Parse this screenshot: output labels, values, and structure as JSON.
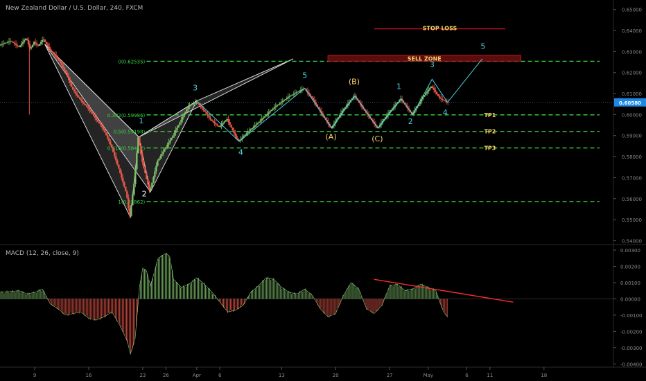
{
  "chart_data": [
    {
      "type": "candlestick",
      "symbol_title": "New Zealand Dollar / U.S. Dollar, 240, FXCM",
      "y_ticks": [
        "0.65000",
        "0.64000",
        "0.63000",
        "0.62000",
        "0.61000",
        "0.60000",
        "0.59000",
        "0.58000",
        "0.57000",
        "0.56000",
        "0.55000",
        "0.54000"
      ],
      "ylim": [
        0.5385,
        0.6545
      ],
      "x_ticks": [
        "9",
        "16",
        "23",
        "26",
        "Apr",
        "6",
        "13",
        "20",
        "27",
        "May",
        "6",
        "11",
        "18"
      ],
      "x_tick_positions": [
        1,
        8,
        15,
        18,
        22,
        25,
        33,
        40,
        47,
        52,
        57,
        60,
        67
      ],
      "xlim": [
        -3.5,
        76
      ],
      "last_price": "0.60580",
      "last_price_value": 0.6058,
      "price_path": [
        [
          -3.5,
          0.633
        ],
        [
          -2,
          0.635
        ],
        [
          -1,
          0.632
        ],
        [
          0,
          0.6365
        ],
        [
          0.5,
          0.631
        ],
        [
          1,
          0.6345
        ],
        [
          1.5,
          0.6325
        ],
        [
          2.2,
          0.636
        ],
        [
          3,
          0.631
        ],
        [
          4,
          0.627
        ],
        [
          5,
          0.621
        ],
        [
          6,
          0.612
        ],
        [
          7,
          0.607
        ],
        [
          8,
          0.603
        ],
        [
          9,
          0.598
        ],
        [
          10,
          0.593
        ],
        [
          11,
          0.585
        ],
        [
          12,
          0.574
        ],
        [
          13,
          0.562
        ],
        [
          13.4,
          0.5512
        ],
        [
          14,
          0.568
        ],
        [
          14.5,
          0.5893
        ],
        [
          15,
          0.578
        ],
        [
          16,
          0.5632
        ],
        [
          17,
          0.578
        ],
        [
          18,
          0.584
        ],
        [
          19,
          0.59
        ],
        [
          20,
          0.597
        ],
        [
          21,
          0.604
        ],
        [
          22,
          0.606
        ],
        [
          23,
          0.602
        ],
        [
          24,
          0.597
        ],
        [
          25,
          0.594
        ],
        [
          26,
          0.598
        ],
        [
          27,
          0.5905
        ],
        [
          27.5,
          0.5872
        ],
        [
          28.5,
          0.591
        ],
        [
          30,
          0.596
        ],
        [
          32,
          0.603
        ],
        [
          34,
          0.6085
        ],
        [
          36,
          0.6125
        ],
        [
          37,
          0.608
        ],
        [
          38,
          0.602
        ],
        [
          39.5,
          0.5935
        ],
        [
          41,
          0.602
        ],
        [
          42.5,
          0.609
        ],
        [
          44,
          0.601
        ],
        [
          45.5,
          0.5935
        ],
        [
          47,
          0.601
        ],
        [
          48.5,
          0.6075
        ],
        [
          50,
          0.6
        ],
        [
          51.5,
          0.609
        ],
        [
          52.5,
          0.6135
        ],
        [
          53.5,
          0.608
        ],
        [
          54.5,
          0.6058
        ]
      ],
      "fib_levels": [
        {
          "label": "0(0.62535)",
          "value": 0.62535
        },
        {
          "label": "0.382(0.59986)",
          "value": 0.59986
        },
        {
          "label": "0.5(0.59198)",
          "value": 0.59198
        },
        {
          "label": "0.618(0.58412)",
          "value": 0.58412
        },
        {
          "label": "1(0.55862)",
          "value": 0.55862
        }
      ],
      "targets": [
        {
          "label": "TP1",
          "value": 0.59986
        },
        {
          "label": "TP2",
          "value": 0.59198
        },
        {
          "label": "TP3",
          "value": 0.58412
        }
      ],
      "stop_loss": {
        "label": "STOP LOSS",
        "value": 0.6408,
        "x_start": 45,
        "x_end": 62
      },
      "sell_zone": {
        "label": "SELL ZONE",
        "top": 0.6282,
        "bottom": 0.6254,
        "x_start": 39,
        "x_end": 64
      },
      "harmonic_pattern": [
        [
          [
            2.3,
            0.6335
          ],
          [
            13.4,
            0.5512
          ],
          [
            14.5,
            0.5893
          ]
        ],
        [
          [
            14.5,
            0.5893
          ],
          [
            16,
            0.5632
          ],
          [
            22,
            0.6065
          ]
        ],
        [
          [
            2.3,
            0.6335
          ],
          [
            14.5,
            0.5893
          ],
          [
            16,
            0.5632
          ]
        ],
        [
          [
            14.5,
            0.5893
          ],
          [
            22,
            0.6065
          ],
          [
            34.5,
            0.6265
          ]
        ]
      ],
      "wave_path": [
        [
          22,
          0.6065
        ],
        [
          27.5,
          0.5872
        ],
        [
          36,
          0.6125
        ],
        [
          39.5,
          0.5935
        ],
        [
          42.5,
          0.609
        ],
        [
          45.5,
          0.5935
        ],
        [
          48.5,
          0.6075
        ],
        [
          50,
          0.6
        ],
        [
          52.5,
          0.6168
        ],
        [
          54.5,
          0.6058
        ],
        [
          59,
          0.6265
        ]
      ],
      "wave_labels": [
        {
          "text": "1",
          "x": 14.8,
          "y": 0.5958,
          "color": "#4dd0e1"
        },
        {
          "text": "2",
          "x": 15.2,
          "y": 0.561,
          "color": "#f7f7f7"
        },
        {
          "text": "3",
          "x": 21.8,
          "y": 0.6115,
          "color": "#4dd0e1"
        },
        {
          "text": "4",
          "x": 27.7,
          "y": 0.5808,
          "color": "#4dd0e1"
        },
        {
          "text": "5",
          "x": 36,
          "y": 0.6175,
          "color": "#4dd0e1"
        },
        {
          "text": "(A)",
          "x": 39.4,
          "y": 0.5882,
          "color": "#f6d56b"
        },
        {
          "text": "(B)",
          "x": 42.4,
          "y": 0.6145,
          "color": "#f6d56b"
        },
        {
          "text": "(C)",
          "x": 45.4,
          "y": 0.5872,
          "color": "#f6d56b"
        },
        {
          "text": "1",
          "x": 48.2,
          "y": 0.6122,
          "color": "#4dd0e1"
        },
        {
          "text": "2",
          "x": 49.7,
          "y": 0.5955,
          "color": "#4dd0e1"
        },
        {
          "text": "3",
          "x": 52.5,
          "y": 0.6225,
          "color": "#4dd0e1"
        },
        {
          "text": "4",
          "x": 54.2,
          "y": 0.5998,
          "color": "#4dd0e1"
        },
        {
          "text": "5",
          "x": 59.1,
          "y": 0.6312,
          "color": "#4dd0e1"
        }
      ]
    },
    {
      "type": "histogram",
      "title": "MACD (12, 26, close, 9)",
      "y_ticks": [
        "0.00300",
        "0.00200",
        "0.00100",
        "0.00000",
        "-0.00100",
        "-0.00200",
        "-0.00300",
        "-0.00400"
      ],
      "ylim": [
        -0.0042,
        0.0033
      ],
      "macd_path": [
        [
          -3.5,
          0.0004
        ],
        [
          -1,
          0.0005
        ],
        [
          0,
          0.0003
        ],
        [
          1,
          0.0004
        ],
        [
          2,
          0.0006
        ],
        [
          3,
          -0.0003
        ],
        [
          4,
          -0.0006
        ],
        [
          5,
          -0.001
        ],
        [
          6,
          -0.0009
        ],
        [
          7,
          -0.0008
        ],
        [
          8,
          -0.0012
        ],
        [
          9,
          -0.0013
        ],
        [
          10,
          -0.0011
        ],
        [
          11,
          -0.0008
        ],
        [
          12,
          -0.0016
        ],
        [
          13,
          -0.0026
        ],
        [
          13.4,
          -0.0034
        ],
        [
          14,
          -0.0025
        ],
        [
          14.6,
          0.0008
        ],
        [
          15,
          0.0019
        ],
        [
          15.5,
          0.0017
        ],
        [
          16,
          0.0008
        ],
        [
          17,
          0.0025
        ],
        [
          18,
          0.0028
        ],
        [
          18.5,
          0.0026
        ],
        [
          19,
          0.0012
        ],
        [
          20,
          0.0007
        ],
        [
          21,
          0.0009
        ],
        [
          22,
          0.0013
        ],
        [
          23,
          0.0009
        ],
        [
          24,
          0.0004
        ],
        [
          25,
          -0.0002
        ],
        [
          26,
          -0.0008
        ],
        [
          27,
          -0.0007
        ],
        [
          28,
          -0.0004
        ],
        [
          29,
          0.0004
        ],
        [
          30,
          0.0008
        ],
        [
          31,
          0.0013
        ],
        [
          32,
          0.0012
        ],
        [
          33,
          0.0007
        ],
        [
          34,
          0.0004
        ],
        [
          35,
          0.0003
        ],
        [
          36,
          0.0006
        ],
        [
          37,
          0.0002
        ],
        [
          38,
          -0.0006
        ],
        [
          39,
          -0.0011
        ],
        [
          40,
          -0.0009
        ],
        [
          41,
          0.0002
        ],
        [
          42,
          0.001
        ],
        [
          43,
          0.0006
        ],
        [
          44,
          -0.0006
        ],
        [
          45,
          -0.0009
        ],
        [
          46,
          -0.0004
        ],
        [
          47,
          0.0008
        ],
        [
          48,
          0.0009
        ],
        [
          49,
          0.0005
        ],
        [
          50,
          0.0006
        ],
        [
          51,
          0.0009
        ],
        [
          52,
          0.0007
        ],
        [
          53,
          0.0005
        ],
        [
          53.5,
          -0.0002
        ],
        [
          54,
          -0.0008
        ],
        [
          54.5,
          -0.0011
        ]
      ],
      "trendline": [
        [
          45,
          0.0012
        ],
        [
          63,
          -0.0002
        ]
      ],
      "trendline_color": "#ff2b2b",
      "positive_color": "#7fbf6a",
      "negative_color": "#e8584a"
    }
  ],
  "colors": {
    "fib_line": "#39d642",
    "fib_label": "#39d642",
    "target_label": "#f6d56b",
    "stop_loss_line": "#c01313",
    "sell_zone_fill": "#5c0c0c",
    "sell_zone_border": "#b31a1a",
    "wave_line": "#4dd0e1",
    "last_price_badge": "#1e88e5"
  }
}
